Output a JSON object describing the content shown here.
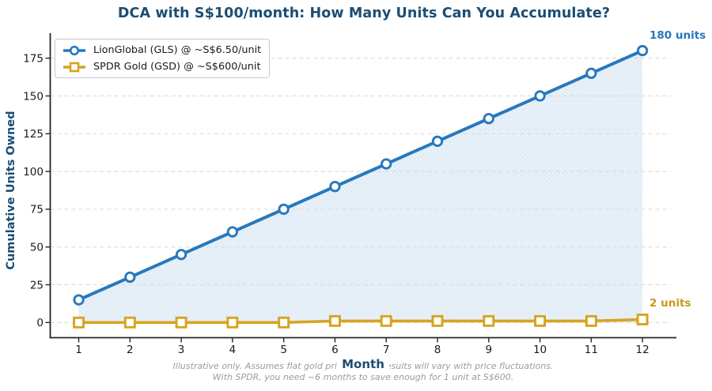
{
  "colors": {
    "navy": "#1b4d74",
    "blue": "#2878bd",
    "gold": "#d7a31f",
    "area_fill": "#e1ecf6",
    "grid": "#d9d9d9",
    "caption_gray": "#9b9b9b"
  },
  "chart_data": {
    "type": "line",
    "title": "DCA with S$100/month: How Many Units Can You Accumulate?",
    "xlabel": "Month",
    "ylabel": "Cumulative Units Owned",
    "x": [
      1,
      2,
      3,
      4,
      5,
      6,
      7,
      8,
      9,
      10,
      11,
      12
    ],
    "xticks": [
      1,
      2,
      3,
      4,
      5,
      6,
      7,
      8,
      9,
      10,
      11,
      12
    ],
    "yticks": [
      0,
      25,
      50,
      75,
      100,
      125,
      150,
      175
    ],
    "xlim": [
      0.444,
      12.662
    ],
    "ylim": [
      -10.05,
      191.55
    ],
    "grid": "horizontal-dashed",
    "legend_position": "upper-left",
    "series": [
      {
        "name": "LionGlobal (GLS) @ ~S$6.50/unit",
        "marker": "circle",
        "color": "#2878bd",
        "line_width": 4,
        "area_fill": true,
        "values": [
          15,
          30,
          45,
          60,
          75,
          90,
          105,
          120,
          135,
          150,
          165,
          180
        ],
        "annotation": "180 units"
      },
      {
        "name": "SPDR Gold (GSD) @ ~S$600/unit",
        "marker": "square",
        "color": "#d7a31f",
        "line_width": 3.5,
        "area_fill": false,
        "values": [
          0,
          0,
          0,
          0,
          0,
          1,
          1,
          1,
          1,
          1,
          1,
          2
        ],
        "annotation": "2 units"
      }
    ],
    "caption_line1": "Illustrative only. Assumes flat gold price; actual results will vary with price fluctuations.",
    "caption_line2": "With SPDR, you need ~6 months to save enough for 1 unit at S$600."
  }
}
